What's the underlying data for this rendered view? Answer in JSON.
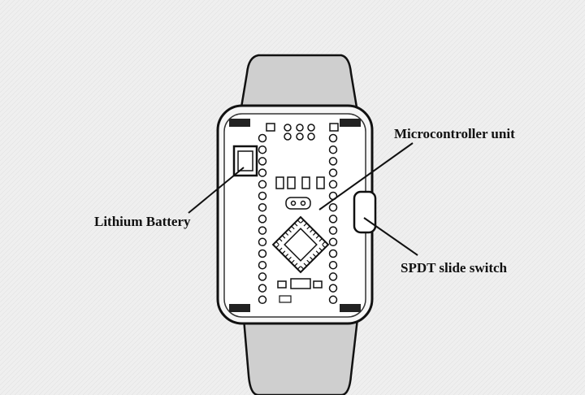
{
  "labels": {
    "microcontroller": "Microcontroller unit",
    "battery": "Lithium Battery",
    "switch": "SPDT slide switch"
  }
}
